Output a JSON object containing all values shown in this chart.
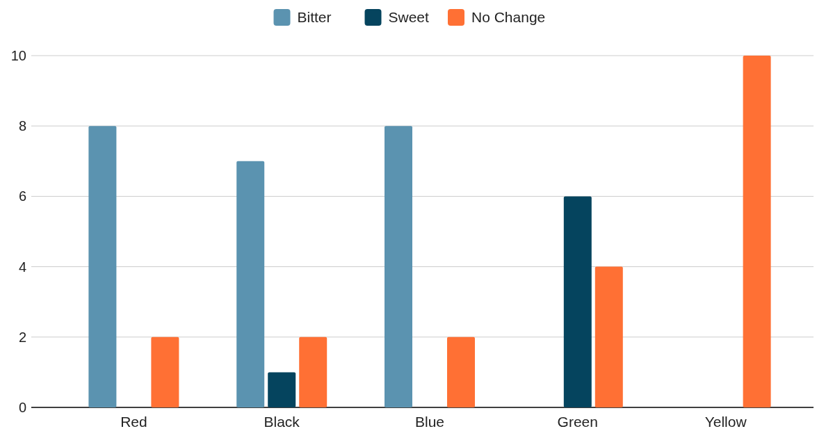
{
  "chart_data": {
    "type": "bar",
    "categories": [
      "Red",
      "Black",
      "Blue",
      "Green",
      "Yellow"
    ],
    "series": [
      {
        "name": "Bitter",
        "color": "#5b93b0",
        "values": [
          8,
          7,
          8,
          0,
          0
        ]
      },
      {
        "name": "Sweet",
        "color": "#05445e",
        "values": [
          0,
          1,
          0,
          6,
          0
        ]
      },
      {
        "name": "No Change",
        "color": "#ff7034",
        "values": [
          2,
          2,
          2,
          4,
          10
        ]
      }
    ],
    "ylim": [
      0,
      10
    ],
    "yticks": [
      0,
      2,
      4,
      6,
      8,
      10
    ],
    "grid": "y",
    "legend": "top"
  }
}
